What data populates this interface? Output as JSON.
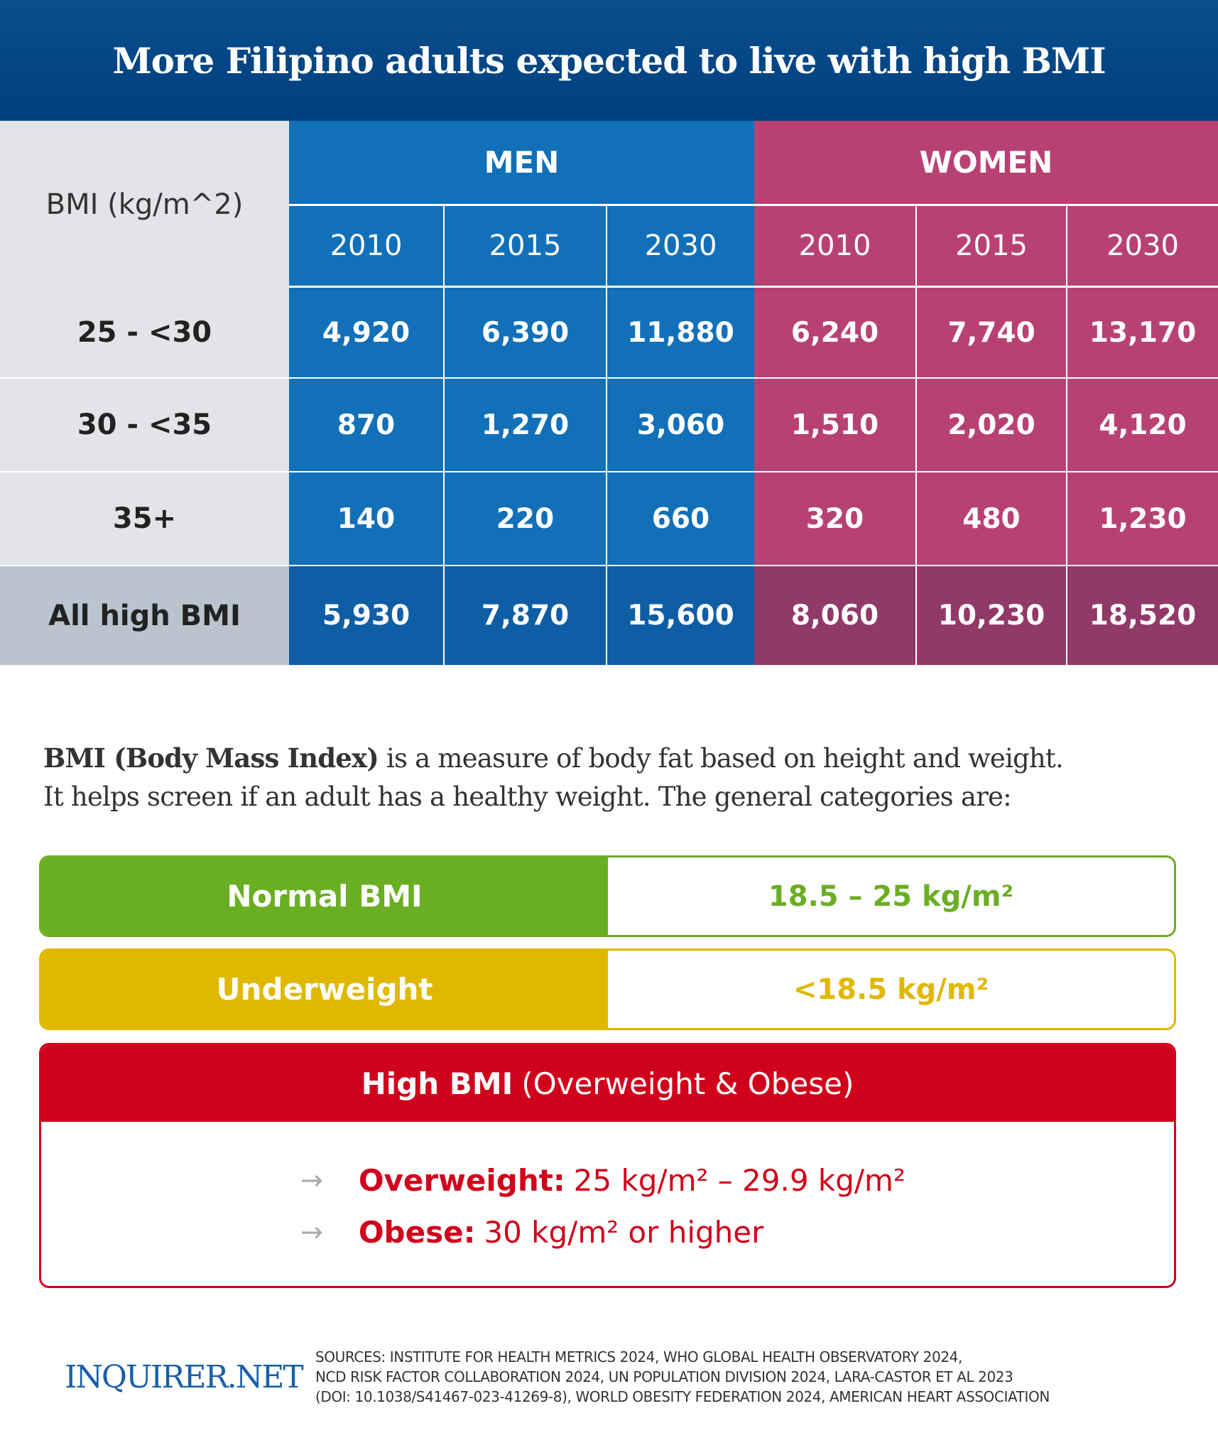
{
  "title": "More Filipino adults expected to live with high BMI",
  "table": {
    "row_header": "BMI (kg/m^2)",
    "groups": [
      "MEN",
      "WOMEN"
    ],
    "years": [
      "2010",
      "2015",
      "2030",
      "2010",
      "2015",
      "2030"
    ],
    "rows": [
      {
        "label": "25 - <30",
        "values": [
          "4,920",
          "6,390",
          "11,880",
          "6,240",
          "7,740",
          "13,170"
        ]
      },
      {
        "label": "30 - <35",
        "values": [
          "870",
          "1,270",
          "3,060",
          "1,510",
          "2,020",
          "4,120"
        ]
      },
      {
        "label": "35+",
        "values": [
          "140",
          "220",
          "660",
          "320",
          "480",
          "1,230"
        ]
      },
      {
        "label": "All high BMI",
        "values": [
          "5,930",
          "7,870",
          "15,600",
          "8,060",
          "10,230",
          "18,520"
        ]
      }
    ]
  },
  "intro": {
    "bold": "BMI (Body Mass Index)",
    "line1": " is a measure of body fat based on height and weight.",
    "line2": "It helps screen if an adult has a healthy weight. The general categories are:"
  },
  "categories": {
    "normal": {
      "label": "Normal BMI",
      "range": "18.5 – 25 kg/m²"
    },
    "underweight": {
      "label": "Underweight",
      "range": "<18.5 kg/m²"
    },
    "high": {
      "label": "High BMI",
      "note": "(Overweight & Obese)",
      "items": [
        {
          "label": "Overweight:",
          "text": "25 kg/m² – 29.9 kg/m²"
        },
        {
          "label": "Obese:",
          "text": "30 kg/m² or higher"
        }
      ]
    }
  },
  "footer": {
    "logo": "INQUIRER.NET",
    "sources": [
      "SOURCES:  INSTITUTE FOR HEALTH METRICS 2024, WHO GLOBAL HEALTH OBSERVATORY 2024,",
      "NCD RISK FACTOR COLLABORATION 2024, UN POPULATION DIVISION 2024, LARA-CASTOR ET AL 2023",
      "(DOI: 10.1038/S41467-023-41269-8), WORLD OBESITY FEDERATION 2024, AMERICAN HEART ASSOCIATION"
    ]
  }
}
